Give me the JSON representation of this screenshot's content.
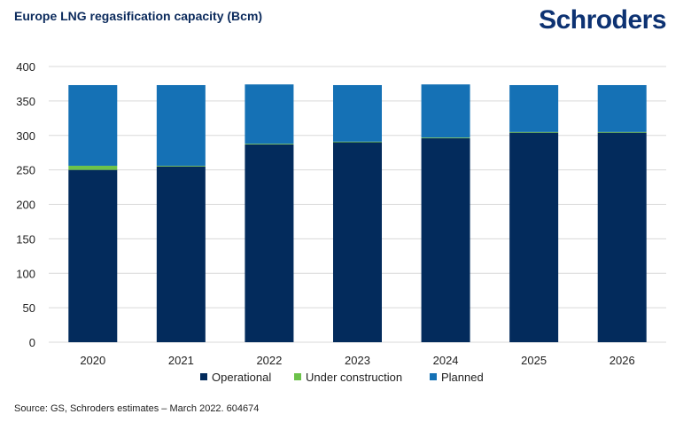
{
  "header": {
    "title": "Europe LNG regasification capacity (Bcm)",
    "brand": "Schroders"
  },
  "footer": {
    "source": "Source: GS, Schroders estimates – March 2022. 604674"
  },
  "colors": {
    "operational": "#032b5c",
    "under_construction": "#6cc24a",
    "planned": "#1571b5",
    "grid": "#d9d9d9",
    "axis_text": "#222222"
  },
  "chart_data": {
    "type": "bar",
    "stacked": true,
    "title": "Europe LNG regasification capacity (Bcm)",
    "xlabel": "",
    "ylabel": "",
    "ylim": [
      0,
      400
    ],
    "yticks": [
      0,
      50,
      100,
      150,
      200,
      250,
      300,
      350,
      400
    ],
    "categories": [
      "2020",
      "2021",
      "2022",
      "2023",
      "2024",
      "2025",
      "2026"
    ],
    "series": [
      {
        "name": "Operational",
        "values": [
          250,
          255,
          287,
          290,
          296,
          304,
          304
        ]
      },
      {
        "name": "Under construction",
        "values": [
          6,
          1,
          1,
          1,
          1,
          1,
          1
        ]
      },
      {
        "name": "Planned",
        "values": [
          117,
          117,
          86,
          82,
          77,
          68,
          68
        ]
      }
    ],
    "legend_position": "bottom-center",
    "grid": true
  }
}
